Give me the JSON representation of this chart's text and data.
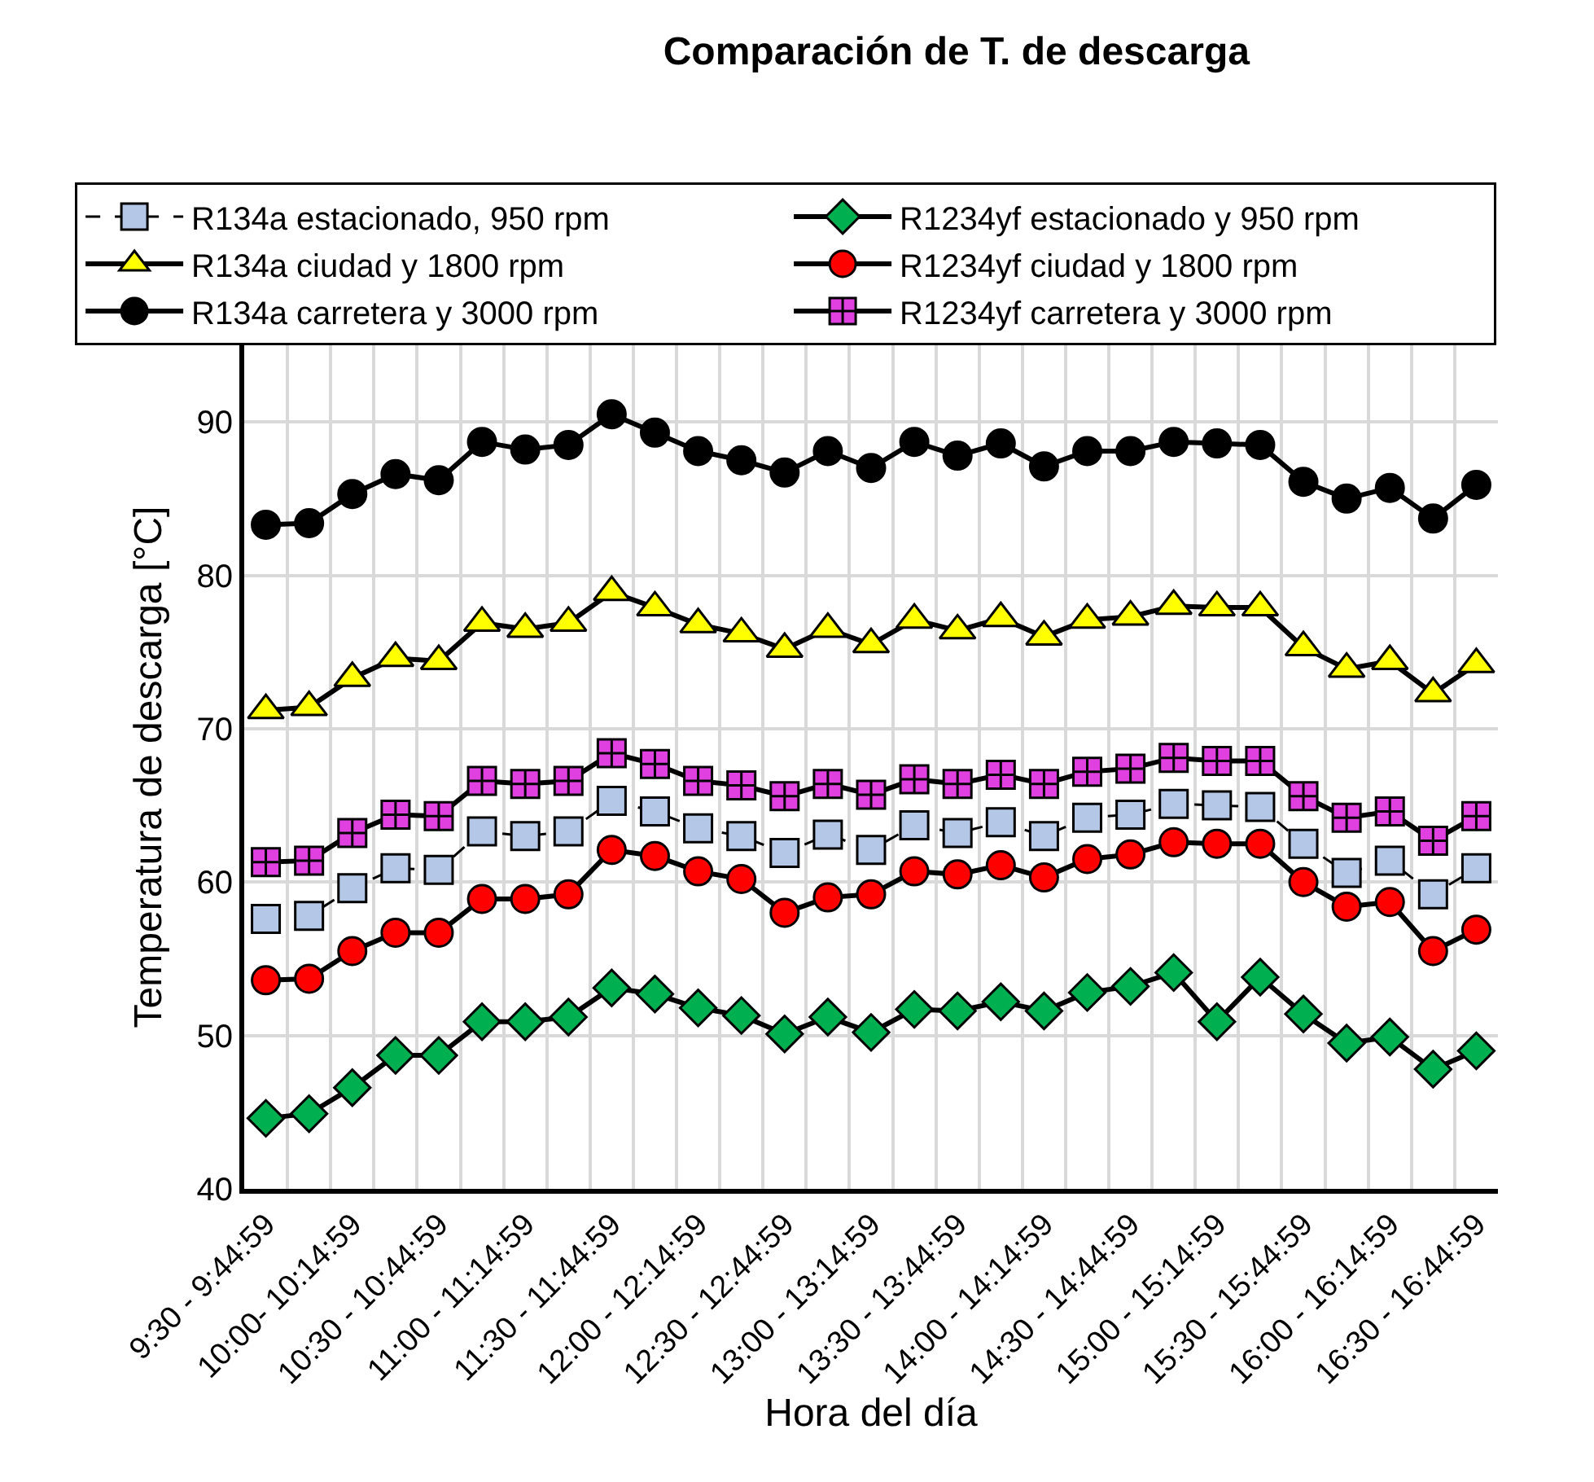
{
  "chart_data": {
    "type": "line",
    "title": "Comparación de T. de descarga",
    "xlabel": "Hora del día",
    "ylabel": "Temperatura de descarga [°C]",
    "categories": [
      "9:30 - 9:44:59",
      null,
      "10:00- 10:14:59",
      null,
      "10:30 - 10:44:59",
      null,
      "11:00 - 11:14:59",
      null,
      "11:30 - 11:44:59",
      null,
      "12:00 - 12:14:59",
      null,
      "12:30 - 12:44:59",
      null,
      "13:00 - 13:14:59",
      null,
      "13:30 - 13:44:59",
      null,
      "14:00 - 14:14:59",
      null,
      "14:30 - 14:44:59",
      null,
      "15:00 - 15:14:59",
      null,
      "15:30 - 15:44:59",
      null,
      "16:00 - 16:14:59",
      null,
      "16:30 - 16:44:59"
    ],
    "series": [
      {
        "name": "R134a estacionado, 950 rpm",
        "color": "#b4c7e7",
        "marker": "square",
        "line_style": "dashed",
        "values": [
          57.6,
          57.8,
          59.6,
          60.9,
          60.8,
          63.3,
          63.0,
          63.3,
          65.3,
          64.6,
          63.5,
          63.0,
          61.9,
          63.1,
          62.1,
          63.7,
          63.2,
          63.9,
          63.0,
          64.2,
          64.4,
          65.1,
          65.0,
          64.9,
          62.5,
          60.6,
          61.4,
          59.2,
          60.9
        ]
      },
      {
        "name": "R1234yf estacionado y 950 rpm",
        "color": "#00b050",
        "marker": "diamond",
        "line_style": "solid",
        "values": [
          44.6,
          44.9,
          46.6,
          48.7,
          48.7,
          50.9,
          50.9,
          51.2,
          53.1,
          52.7,
          51.8,
          51.3,
          50.1,
          51.2,
          50.2,
          51.7,
          51.6,
          52.2,
          51.6,
          52.8,
          53.2,
          54.1,
          50.9,
          53.8,
          51.4,
          49.5,
          49.9,
          47.8,
          49.0
        ]
      },
      {
        "name": "R134a ciudad y 1800 rpm",
        "color": "#ffff00",
        "marker": "triangle",
        "line_style": "solid",
        "values": [
          71.2,
          71.4,
          73.3,
          74.6,
          74.4,
          76.9,
          76.5,
          76.9,
          78.9,
          77.9,
          76.8,
          76.2,
          75.2,
          76.5,
          75.5,
          77.1,
          76.4,
          77.2,
          76.0,
          77.1,
          77.3,
          78.0,
          77.9,
          77.9,
          75.3,
          73.9,
          74.4,
          72.3,
          74.2
        ]
      },
      {
        "name": "R1234yf ciudad y 1800 rpm",
        "color": "#ff0000",
        "marker": "circle",
        "line_style": "solid",
        "values": [
          53.6,
          53.7,
          55.5,
          56.7,
          56.7,
          58.9,
          58.9,
          59.2,
          62.1,
          61.7,
          60.7,
          60.2,
          58.0,
          59.0,
          59.2,
          60.7,
          60.5,
          61.1,
          60.3,
          61.5,
          61.8,
          62.6,
          62.5,
          62.5,
          60.0,
          58.4,
          58.7,
          55.5,
          56.9
        ]
      },
      {
        "name": "R134a carretera y 3000 rpm",
        "color": "#000000",
        "marker": "circle",
        "line_style": "solid",
        "values": [
          83.3,
          83.4,
          85.3,
          86.6,
          86.2,
          88.7,
          88.2,
          88.5,
          90.5,
          89.3,
          88.1,
          87.5,
          86.7,
          88.1,
          87.0,
          88.7,
          87.8,
          88.6,
          87.1,
          88.1,
          88.1,
          88.7,
          88.6,
          88.5,
          86.1,
          85.0,
          85.7,
          83.7,
          85.9
        ]
      },
      {
        "name": "R1234yf carretera y 3000 rpm",
        "color": "#e040e0",
        "marker": "cross",
        "line_style": "solid",
        "values": [
          61.3,
          61.4,
          63.2,
          64.4,
          64.3,
          66.6,
          66.4,
          66.6,
          68.4,
          67.7,
          66.6,
          66.3,
          65.6,
          66.4,
          65.7,
          66.7,
          66.4,
          67.0,
          66.4,
          67.2,
          67.4,
          68.1,
          67.9,
          67.9,
          65.6,
          64.2,
          64.6,
          62.7,
          64.3
        ]
      }
    ],
    "ylim": [
      40,
      95
    ],
    "yticks": [
      40,
      50,
      60,
      70,
      80,
      90
    ],
    "grid": true,
    "legend": "top"
  }
}
